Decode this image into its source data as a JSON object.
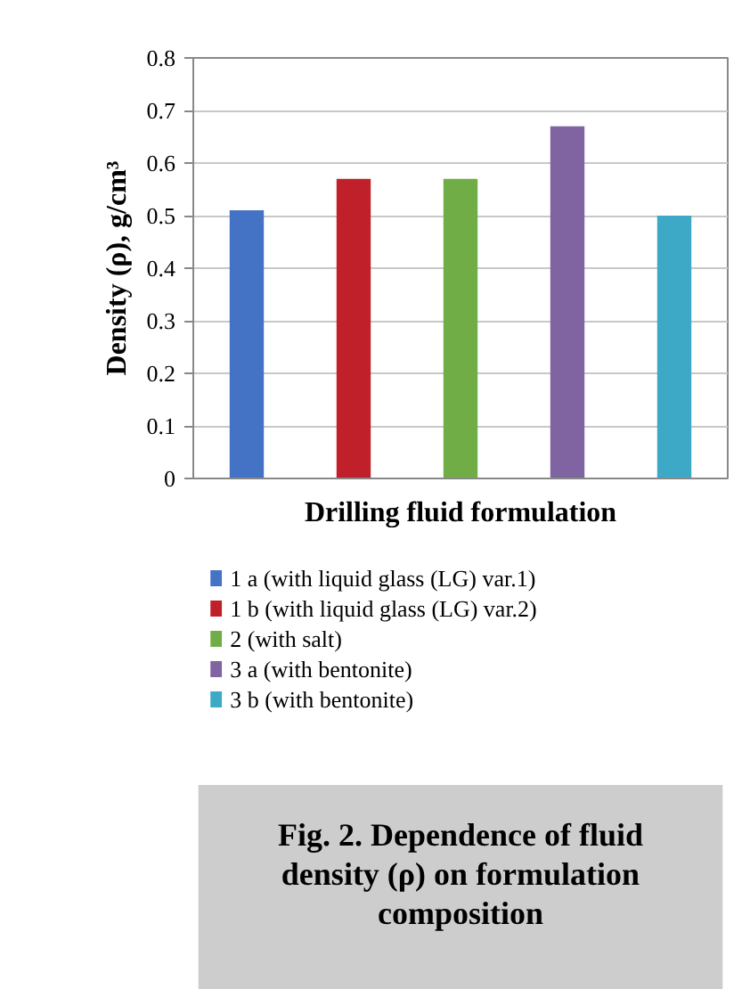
{
  "chart_data": {
    "type": "bar",
    "categories": [
      null,
      null,
      null,
      null,
      null
    ],
    "series": [
      {
        "name": "1 a (with liquid glass (LG) var.1)",
        "color": "#4472c4",
        "values": [
          0.51,
          null,
          null,
          null,
          null
        ]
      },
      {
        "name": "1 b (with liquid glass (LG) var.2)",
        "color": "#c0202a",
        "values": [
          null,
          0.57,
          null,
          null,
          null
        ]
      },
      {
        "name": "2 (with salt)",
        "color": "#70ad47",
        "values": [
          null,
          null,
          0.57,
          null,
          null
        ]
      },
      {
        "name": "3 a (with bentonite)",
        "color": "#8064a2",
        "values": [
          null,
          null,
          null,
          0.67,
          null
        ]
      },
      {
        "name": "3 b (with bentonite)",
        "color": "#3ea9c6",
        "values": [
          null,
          null,
          null,
          null,
          0.5
        ]
      }
    ],
    "xlabel": "Drilling fluid formulation",
    "ylabel": "Density (ρ), g/cm³",
    "ylim": [
      0,
      0.8
    ],
    "yticks": [
      0,
      0.1,
      0.2,
      0.3,
      0.4,
      0.5,
      0.6,
      0.7,
      0.8
    ],
    "grid": "y",
    "legend": "bottom",
    "annotations": [
      "Fig. 2. Dependence of fluid density (ρ) on formulation composition"
    ]
  }
}
